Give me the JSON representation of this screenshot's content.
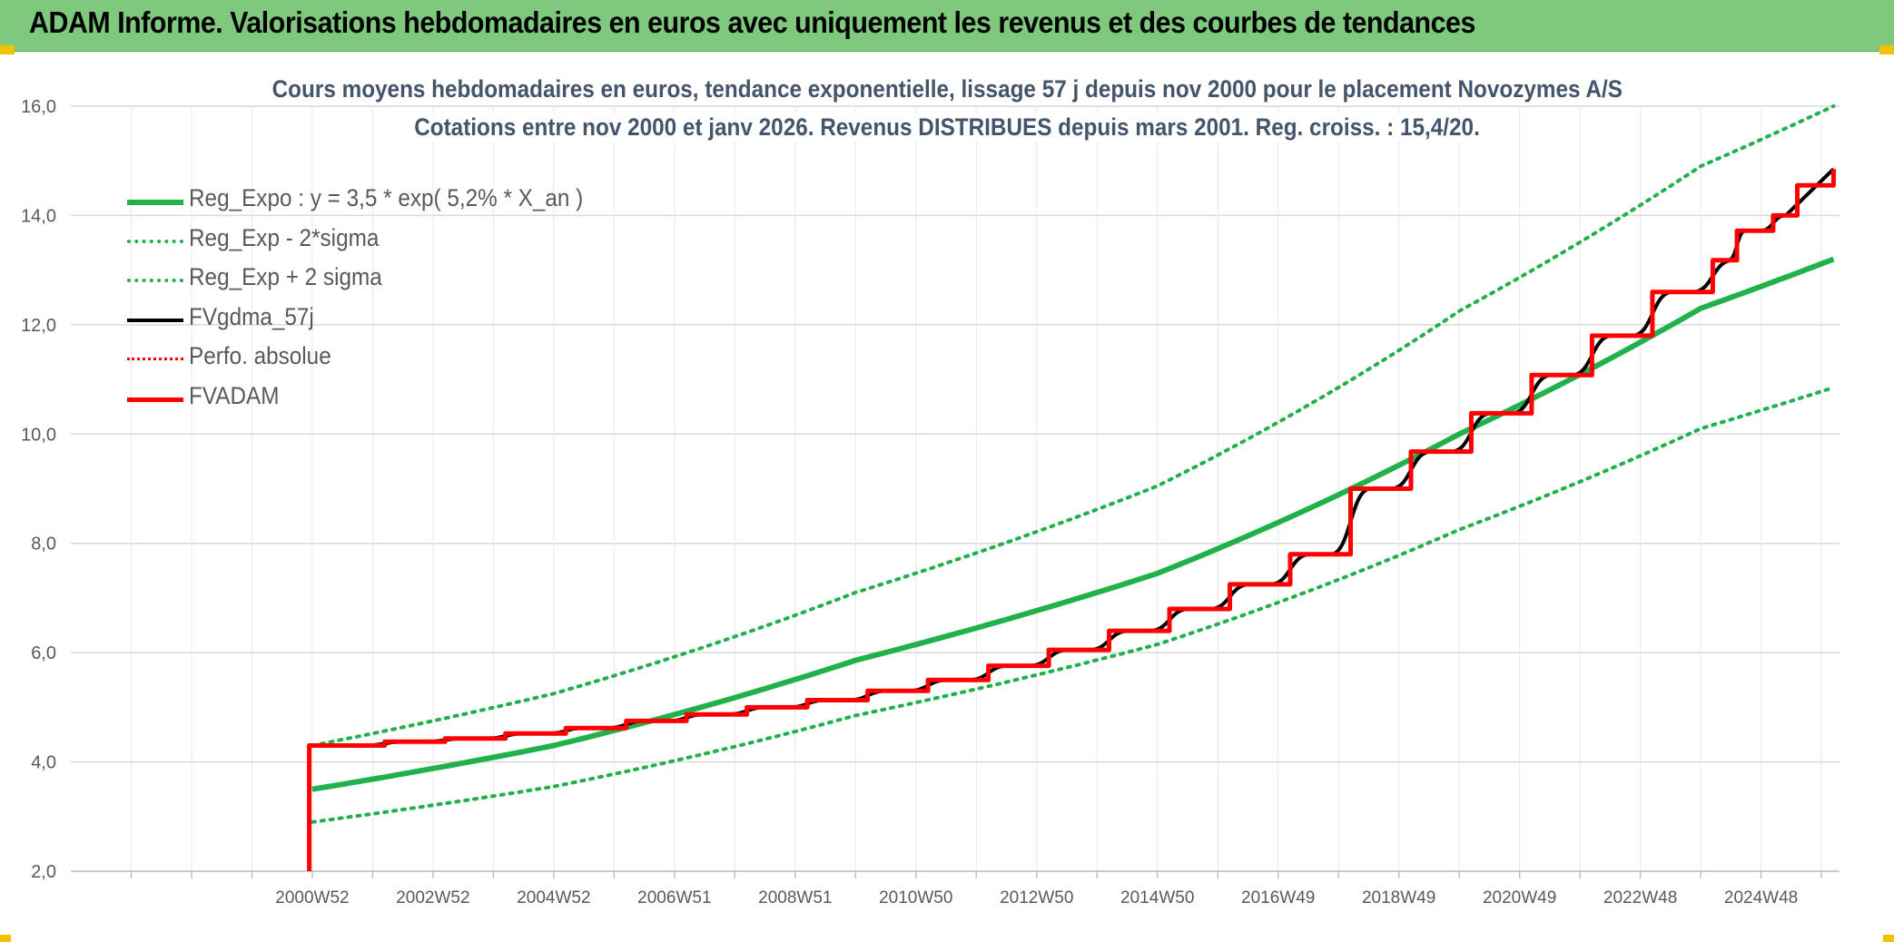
{
  "banner": {
    "title": "ADAM Informe. Valorisations hebdomadaires en euros avec uniquement les revenus et des courbes de tendances"
  },
  "chart_data": {
    "type": "line",
    "title": "Cours moyens hebdomadaires en euros, tendance exponentielle, lissage 57 j depuis nov 2000 pour le placement Novozymes A/S",
    "subtitle": "Cotations entre nov 2000 et janv 2026. Revenus DISTRIBUES depuis mars 2001. Reg. croiss. : 15,4/20.",
    "xlabel": "",
    "ylabel": "",
    "ylim": [
      2,
      16
    ],
    "y_ticks": [
      "2,0",
      "4,0",
      "6,0",
      "8,0",
      "10,0",
      "12,0",
      "14,0",
      "16,0"
    ],
    "x_tick_labels": [
      "2000W52",
      "2002W52",
      "2004W52",
      "2006W51",
      "2008W51",
      "2010W50",
      "2012W50",
      "2014W50",
      "2016W49",
      "2018W49",
      "2020W49",
      "2022W48",
      "2024W48"
    ],
    "x_tick_years": [
      2001,
      2003,
      2005,
      2007,
      2009,
      2011,
      2013,
      2015,
      2017,
      2019,
      2021,
      2023,
      2025
    ],
    "xlim": [
      1997.0,
      2026.3
    ],
    "gridlines": "horizontal",
    "legend_position": "top-left",
    "series": [
      {
        "name": "Reg_Expo : y = 3,5 * exp( 5,2% *  X_an )",
        "color": "#21b14b",
        "style": "solid",
        "width": 6,
        "x": [
          2001.0,
          2005.0,
          2010.0,
          2015.0,
          2020.0,
          2024.0,
          2026.2
        ],
        "values": [
          3.5,
          4.3,
          5.86,
          7.45,
          10.0,
          12.3,
          13.2
        ]
      },
      {
        "name": "Reg_Exp - 2*sigma",
        "color": "#21b14b",
        "style": "dotted",
        "width": 4,
        "x": [
          2001.0,
          2005.0,
          2010.0,
          2015.0,
          2020.0,
          2024.0,
          2026.2
        ],
        "values": [
          2.9,
          3.55,
          4.85,
          6.15,
          8.25,
          10.1,
          10.85
        ]
      },
      {
        "name": "Reg_Exp + 2 sigma",
        "color": "#21b14b",
        "style": "dotted",
        "width": 4,
        "x": [
          2001.0,
          2005.0,
          2010.0,
          2015.0,
          2020.0,
          2024.0,
          2026.2
        ],
        "values": [
          4.3,
          5.25,
          7.1,
          9.05,
          12.25,
          14.9,
          16.0
        ]
      },
      {
        "name": "FVgdma_57j",
        "color": "#000000",
        "style": "smooth-step",
        "width": 4,
        "x": [
          2001.05,
          2002.2,
          2003.2,
          2004.2,
          2005.2,
          2006.2,
          2007.2,
          2008.2,
          2009.2,
          2010.2,
          2011.2,
          2012.2,
          2013.2,
          2014.2,
          2015.2,
          2016.2,
          2017.2,
          2018.2,
          2019.2,
          2020.2,
          2021.2,
          2022.2,
          2023.2,
          2024.2,
          2024.6,
          2025.2
        ],
        "values": [
          4.3,
          4.37,
          4.43,
          4.52,
          4.62,
          4.75,
          4.87,
          5.0,
          5.13,
          5.3,
          5.5,
          5.76,
          6.05,
          6.4,
          6.8,
          7.25,
          7.8,
          9.0,
          9.68,
          10.38,
          11.08,
          11.8,
          12.6,
          13.18,
          13.72,
          14.0
        ]
      },
      {
        "name": "Perfo. absolue",
        "color": "#ff0000",
        "style": "dotted",
        "width": 2,
        "x": [],
        "values": []
      },
      {
        "name": "FVADAM",
        "color": "#ff0000",
        "style": "step",
        "width": 5,
        "x_start": 2000.95,
        "y_start": 2.0,
        "x": [
          2001.0,
          2002.2,
          2003.2,
          2004.2,
          2005.2,
          2006.2,
          2007.2,
          2008.2,
          2009.2,
          2010.2,
          2011.2,
          2012.2,
          2013.2,
          2014.2,
          2015.2,
          2016.2,
          2017.2,
          2018.2,
          2019.2,
          2020.2,
          2021.2,
          2022.2,
          2023.2,
          2024.2,
          2024.6,
          2025.2,
          2025.6
        ],
        "values": [
          4.3,
          4.37,
          4.43,
          4.52,
          4.62,
          4.75,
          4.87,
          5.0,
          5.13,
          5.3,
          5.5,
          5.76,
          6.05,
          6.4,
          6.8,
          7.25,
          7.8,
          9.0,
          9.68,
          10.38,
          11.08,
          11.8,
          12.6,
          13.18,
          13.72,
          14.0,
          14.55
        ]
      }
    ],
    "last_point": {
      "x": 2026.2,
      "value": 14.85
    }
  },
  "colors": {
    "banner_bg": "#7fc97f",
    "corner_accent": "#f2c200",
    "title_text": "#44546a",
    "axis_text": "#595959",
    "grid": "#d9d9d9"
  }
}
